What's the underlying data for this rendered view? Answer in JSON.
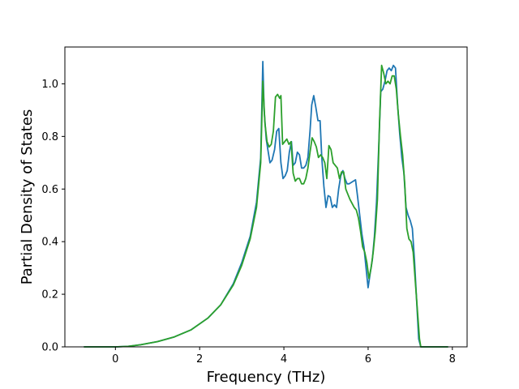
{
  "chart_data": {
    "type": "line",
    "title": "",
    "xlabel": "Frequency (THz)",
    "ylabel": "Partial Density of States",
    "xlim": [
      -1.2,
      8.35
    ],
    "ylim": [
      0,
      1.14
    ],
    "xticks": [
      0,
      2,
      4,
      6,
      8
    ],
    "yticks": [
      0.0,
      0.2,
      0.4,
      0.6,
      0.8,
      1.0
    ],
    "xtick_labels": [
      "0",
      "2",
      "4",
      "6",
      "8"
    ],
    "ytick_labels": [
      "0.0",
      "0.2",
      "0.4",
      "0.6",
      "0.8",
      "1.0"
    ],
    "grid": false,
    "legend": "none",
    "series": [
      {
        "color": "#1f77b4",
        "points": [
          [
            -0.75,
            0.0
          ],
          [
            0.0,
            0.0
          ],
          [
            0.3,
            0.002
          ],
          [
            0.6,
            0.008
          ],
          [
            1.0,
            0.02
          ],
          [
            1.4,
            0.038
          ],
          [
            1.8,
            0.065
          ],
          [
            2.2,
            0.11
          ],
          [
            2.5,
            0.16
          ],
          [
            2.8,
            0.24
          ],
          [
            3.0,
            0.32
          ],
          [
            3.2,
            0.42
          ],
          [
            3.35,
            0.55
          ],
          [
            3.45,
            0.72
          ],
          [
            3.5,
            1.085
          ],
          [
            3.53,
            0.9
          ],
          [
            3.58,
            0.79
          ],
          [
            3.62,
            0.75
          ],
          [
            3.67,
            0.7
          ],
          [
            3.72,
            0.71
          ],
          [
            3.78,
            0.75
          ],
          [
            3.83,
            0.82
          ],
          [
            3.88,
            0.83
          ],
          [
            3.93,
            0.7
          ],
          [
            3.98,
            0.64
          ],
          [
            4.03,
            0.65
          ],
          [
            4.08,
            0.67
          ],
          [
            4.13,
            0.74
          ],
          [
            4.18,
            0.78
          ],
          [
            4.22,
            0.69
          ],
          [
            4.27,
            0.7
          ],
          [
            4.32,
            0.74
          ],
          [
            4.37,
            0.73
          ],
          [
            4.42,
            0.68
          ],
          [
            4.47,
            0.68
          ],
          [
            4.52,
            0.69
          ],
          [
            4.57,
            0.72
          ],
          [
            4.62,
            0.82
          ],
          [
            4.66,
            0.92
          ],
          [
            4.71,
            0.955
          ],
          [
            4.76,
            0.91
          ],
          [
            4.81,
            0.86
          ],
          [
            4.86,
            0.86
          ],
          [
            4.9,
            0.72
          ],
          [
            4.95,
            0.61
          ],
          [
            5.0,
            0.53
          ],
          [
            5.05,
            0.575
          ],
          [
            5.1,
            0.57
          ],
          [
            5.15,
            0.53
          ],
          [
            5.2,
            0.54
          ],
          [
            5.25,
            0.53
          ],
          [
            5.3,
            0.6
          ],
          [
            5.35,
            0.65
          ],
          [
            5.4,
            0.67
          ],
          [
            5.45,
            0.64
          ],
          [
            5.5,
            0.62
          ],
          [
            5.55,
            0.62
          ],
          [
            5.6,
            0.625
          ],
          [
            5.65,
            0.63
          ],
          [
            5.7,
            0.635
          ],
          [
            5.75,
            0.57
          ],
          [
            5.8,
            0.5
          ],
          [
            5.85,
            0.43
          ],
          [
            5.9,
            0.38
          ],
          [
            5.95,
            0.3
          ],
          [
            6.0,
            0.225
          ],
          [
            6.05,
            0.28
          ],
          [
            6.1,
            0.33
          ],
          [
            6.15,
            0.42
          ],
          [
            6.2,
            0.55
          ],
          [
            6.25,
            0.75
          ],
          [
            6.3,
            0.97
          ],
          [
            6.35,
            0.98
          ],
          [
            6.4,
            1.01
          ],
          [
            6.45,
            1.05
          ],
          [
            6.5,
            1.06
          ],
          [
            6.55,
            1.05
          ],
          [
            6.6,
            1.07
          ],
          [
            6.65,
            1.06
          ],
          [
            6.7,
            0.92
          ],
          [
            6.75,
            0.81
          ],
          [
            6.8,
            0.72
          ],
          [
            6.85,
            0.66
          ],
          [
            6.9,
            0.53
          ],
          [
            6.95,
            0.5
          ],
          [
            7.0,
            0.48
          ],
          [
            7.05,
            0.45
          ],
          [
            7.1,
            0.33
          ],
          [
            7.15,
            0.18
          ],
          [
            7.2,
            0.03
          ],
          [
            7.25,
            0.0
          ],
          [
            7.9,
            0.0
          ]
        ]
      },
      {
        "color": "#2ca02c",
        "points": [
          [
            -0.75,
            0.0
          ],
          [
            0.0,
            0.0
          ],
          [
            0.3,
            0.002
          ],
          [
            0.6,
            0.008
          ],
          [
            1.0,
            0.02
          ],
          [
            1.4,
            0.038
          ],
          [
            1.8,
            0.065
          ],
          [
            2.2,
            0.11
          ],
          [
            2.5,
            0.16
          ],
          [
            2.8,
            0.235
          ],
          [
            3.0,
            0.31
          ],
          [
            3.2,
            0.41
          ],
          [
            3.35,
            0.53
          ],
          [
            3.45,
            0.7
          ],
          [
            3.5,
            1.01
          ],
          [
            3.55,
            0.85
          ],
          [
            3.6,
            0.78
          ],
          [
            3.65,
            0.76
          ],
          [
            3.7,
            0.77
          ],
          [
            3.75,
            0.82
          ],
          [
            3.8,
            0.95
          ],
          [
            3.85,
            0.96
          ],
          [
            3.9,
            0.945
          ],
          [
            3.93,
            0.955
          ],
          [
            3.97,
            0.77
          ],
          [
            4.02,
            0.78
          ],
          [
            4.07,
            0.79
          ],
          [
            4.12,
            0.77
          ],
          [
            4.17,
            0.78
          ],
          [
            4.22,
            0.66
          ],
          [
            4.27,
            0.63
          ],
          [
            4.32,
            0.64
          ],
          [
            4.37,
            0.64
          ],
          [
            4.42,
            0.62
          ],
          [
            4.47,
            0.62
          ],
          [
            4.52,
            0.64
          ],
          [
            4.57,
            0.68
          ],
          [
            4.62,
            0.74
          ],
          [
            4.67,
            0.795
          ],
          [
            4.72,
            0.78
          ],
          [
            4.77,
            0.76
          ],
          [
            4.82,
            0.72
          ],
          [
            4.87,
            0.73
          ],
          [
            4.92,
            0.72
          ],
          [
            4.97,
            0.7
          ],
          [
            5.02,
            0.64
          ],
          [
            5.07,
            0.765
          ],
          [
            5.12,
            0.75
          ],
          [
            5.17,
            0.7
          ],
          [
            5.22,
            0.69
          ],
          [
            5.27,
            0.68
          ],
          [
            5.32,
            0.64
          ],
          [
            5.37,
            0.665
          ],
          [
            5.42,
            0.665
          ],
          [
            5.47,
            0.6
          ],
          [
            5.52,
            0.58
          ],
          [
            5.57,
            0.56
          ],
          [
            5.62,
            0.545
          ],
          [
            5.67,
            0.53
          ],
          [
            5.72,
            0.52
          ],
          [
            5.77,
            0.49
          ],
          [
            5.82,
            0.44
          ],
          [
            5.87,
            0.38
          ],
          [
            5.92,
            0.36
          ],
          [
            5.97,
            0.32
          ],
          [
            6.02,
            0.26
          ],
          [
            6.07,
            0.3
          ],
          [
            6.12,
            0.36
          ],
          [
            6.17,
            0.44
          ],
          [
            6.22,
            0.56
          ],
          [
            6.27,
            0.85
          ],
          [
            6.32,
            1.07
          ],
          [
            6.37,
            1.04
          ],
          [
            6.42,
            1.0
          ],
          [
            6.47,
            1.01
          ],
          [
            6.52,
            1.0
          ],
          [
            6.57,
            1.03
          ],
          [
            6.62,
            1.03
          ],
          [
            6.67,
            0.98
          ],
          [
            6.72,
            0.88
          ],
          [
            6.77,
            0.8
          ],
          [
            6.82,
            0.73
          ],
          [
            6.87,
            0.62
          ],
          [
            6.92,
            0.45
          ],
          [
            6.97,
            0.41
          ],
          [
            7.02,
            0.4
          ],
          [
            7.07,
            0.36
          ],
          [
            7.12,
            0.25
          ],
          [
            7.17,
            0.14
          ],
          [
            7.22,
            0.03
          ],
          [
            7.25,
            0.0
          ],
          [
            7.9,
            0.0
          ]
        ]
      }
    ]
  }
}
